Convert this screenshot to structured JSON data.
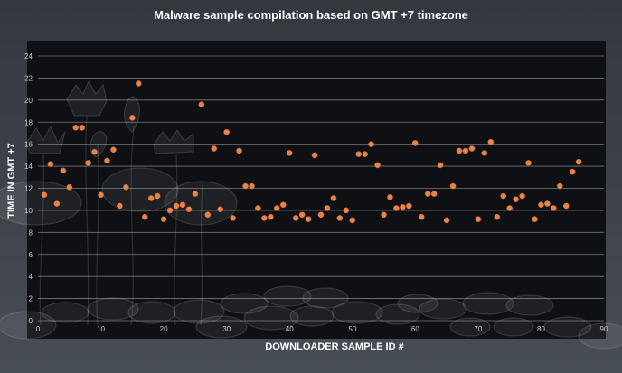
{
  "colors": {
    "background": "#3a3f45",
    "plot_background": "#0e1013",
    "gridline": "#c9ccd0",
    "marker": "#e8844a",
    "text": "#ffffff",
    "tick_text": "#c9ccd0"
  },
  "chart_data": {
    "type": "scatter",
    "title": "Malware sample compilation based on GMT +7 timezone",
    "xlabel": "DOWNLOADER SAMPLE ID #",
    "ylabel": "TIME IN GMT +7",
    "xlim": [
      0,
      90
    ],
    "ylim": [
      0,
      24
    ],
    "x_ticks": [
      0,
      10,
      20,
      30,
      40,
      50,
      60,
      70,
      80,
      90
    ],
    "y_ticks": [
      0,
      2,
      4,
      6,
      8,
      10,
      12,
      14,
      16,
      18,
      20,
      22,
      24
    ],
    "grid": true,
    "legend": "none",
    "points": [
      [
        1,
        11.4
      ],
      [
        2,
        14.2
      ],
      [
        3,
        10.6
      ],
      [
        4,
        13.6
      ],
      [
        5,
        12.1
      ],
      [
        6,
        17.5
      ],
      [
        7,
        17.5
      ],
      [
        8,
        14.3
      ],
      [
        9,
        15.3
      ],
      [
        10,
        11.4
      ],
      [
        11,
        14.5
      ],
      [
        12,
        15.5
      ],
      [
        13,
        10.4
      ],
      [
        14,
        12.1
      ],
      [
        15,
        18.4
      ],
      [
        16,
        21.5
      ],
      [
        17,
        9.4
      ],
      [
        18,
        11.1
      ],
      [
        19,
        11.3
      ],
      [
        20,
        9.2
      ],
      [
        21,
        10.0
      ],
      [
        22,
        10.4
      ],
      [
        23,
        10.5
      ],
      [
        24,
        10.1
      ],
      [
        25,
        11.5
      ],
      [
        26,
        19.6
      ],
      [
        27,
        9.6
      ],
      [
        28,
        15.6
      ],
      [
        29,
        10.1
      ],
      [
        30,
        17.1
      ],
      [
        31,
        9.3
      ],
      [
        32,
        15.4
      ],
      [
        33,
        12.2
      ],
      [
        34,
        12.2
      ],
      [
        35,
        10.2
      ],
      [
        36,
        9.3
      ],
      [
        37,
        9.4
      ],
      [
        38,
        10.2
      ],
      [
        39,
        10.5
      ],
      [
        40,
        15.2
      ],
      [
        41,
        9.3
      ],
      [
        42,
        9.6
      ],
      [
        43,
        9.2
      ],
      [
        44,
        15.0
      ],
      [
        45,
        9.6
      ],
      [
        46,
        10.2
      ],
      [
        47,
        11.1
      ],
      [
        48,
        9.3
      ],
      [
        49,
        10.0
      ],
      [
        50,
        9.1
      ],
      [
        51,
        15.1
      ],
      [
        52,
        15.1
      ],
      [
        53,
        16.0
      ],
      [
        54,
        14.1
      ],
      [
        55,
        9.6
      ],
      [
        56,
        11.2
      ],
      [
        57,
        10.2
      ],
      [
        58,
        10.3
      ],
      [
        59,
        10.4
      ],
      [
        60,
        16.1
      ],
      [
        61,
        9.4
      ],
      [
        62,
        11.5
      ],
      [
        63,
        11.5
      ],
      [
        64,
        14.1
      ],
      [
        65,
        9.1
      ],
      [
        66,
        12.2
      ],
      [
        67,
        15.4
      ],
      [
        68,
        15.4
      ],
      [
        69,
        15.6
      ],
      [
        70,
        9.2
      ],
      [
        71,
        15.2
      ],
      [
        72,
        16.2
      ],
      [
        73,
        9.4
      ],
      [
        74,
        11.3
      ],
      [
        75,
        10.2
      ],
      [
        76,
        11.0
      ],
      [
        77,
        11.3
      ],
      [
        78,
        14.3
      ],
      [
        79,
        9.2
      ],
      [
        80,
        10.5
      ],
      [
        81,
        10.6
      ],
      [
        82,
        10.2
      ],
      [
        83,
        12.2
      ],
      [
        84,
        10.4
      ],
      [
        85,
        13.5
      ],
      [
        86,
        14.4
      ]
    ]
  }
}
